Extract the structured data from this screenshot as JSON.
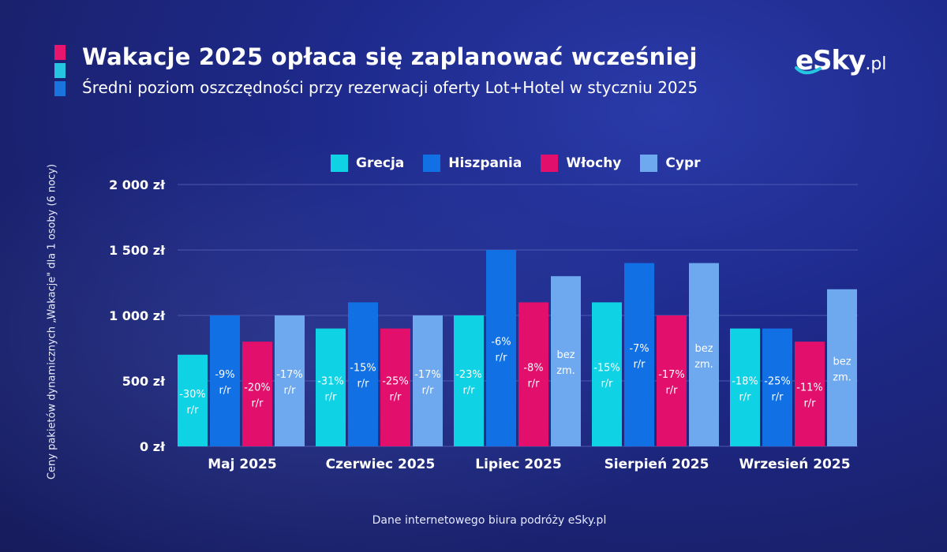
{
  "header": {
    "title": "Wakacje 2025 opłaca się zaplanować wcześniej",
    "subtitle": "Średni poziom oszczędności przy rezerwacji oferty Lot+Hotel w styczniu 2025",
    "logo_main": "eSky",
    "logo_suffix": ".pl"
  },
  "colors": {
    "accent_pink": "#e8156e",
    "accent_cyan": "#24c6e0",
    "accent_blue": "#1a74e0",
    "gridline": "#5a63b8"
  },
  "footer": {
    "source": "Dane internetowego biura podróży eSky.pl"
  },
  "chart_data": {
    "type": "bar",
    "title": "",
    "ylabel": "Ceny pakietów dynamicznych „Wakacje\" dla 1 osoby (6 nocy)",
    "xlabel": "",
    "ylim": [
      0,
      2000
    ],
    "yticks": [
      0,
      500,
      1000,
      1500,
      2000
    ],
    "ytick_labels": [
      "0 zł",
      "500 zł",
      "1 000 zł",
      "1 500 zł",
      "2 000 zł"
    ],
    "grid": true,
    "legend_position": "top-center",
    "categories": [
      "Maj 2025",
      "Czerwiec 2025",
      "Lipiec 2025",
      "Sierpień 2025",
      "Wrzesień 2025"
    ],
    "series": [
      {
        "name": "Grecja",
        "color": "#0fd2e4",
        "values": [
          700,
          900,
          1000,
          1100,
          900
        ],
        "labels": [
          [
            "-30%",
            "r/r"
          ],
          [
            "-31%",
            "r/r"
          ],
          [
            "-23%",
            "r/r"
          ],
          [
            "-15%",
            "r/r"
          ],
          [
            "-18%",
            "r/r"
          ]
        ]
      },
      {
        "name": "Hiszpania",
        "color": "#1170e4",
        "values": [
          1000,
          1100,
          1500,
          1400,
          900
        ],
        "labels": [
          [
            "-9%",
            "r/r"
          ],
          [
            "-15%",
            "r/r"
          ],
          [
            "-6%",
            "r/r"
          ],
          [
            "-7%",
            "r/r"
          ],
          [
            "-25%",
            "r/r"
          ]
        ]
      },
      {
        "name": "Włochy",
        "color": "#e20f6c",
        "values": [
          800,
          900,
          1100,
          1000,
          800
        ],
        "labels": [
          [
            "-20%",
            "r/r"
          ],
          [
            "-25%",
            "r/r"
          ],
          [
            "-8%",
            "r/r"
          ],
          [
            "-17%",
            "r/r"
          ],
          [
            "-11%",
            "r/r"
          ]
        ]
      },
      {
        "name": "Cypr",
        "color": "#6ea8ee",
        "values": [
          1000,
          1000,
          1300,
          1400,
          1200
        ],
        "labels": [
          [
            "-17%",
            "r/r"
          ],
          [
            "-17%",
            "r/r"
          ],
          [
            "bez",
            "zm."
          ],
          [
            "bez",
            "zm."
          ],
          [
            "bez",
            "zm."
          ]
        ]
      }
    ]
  }
}
